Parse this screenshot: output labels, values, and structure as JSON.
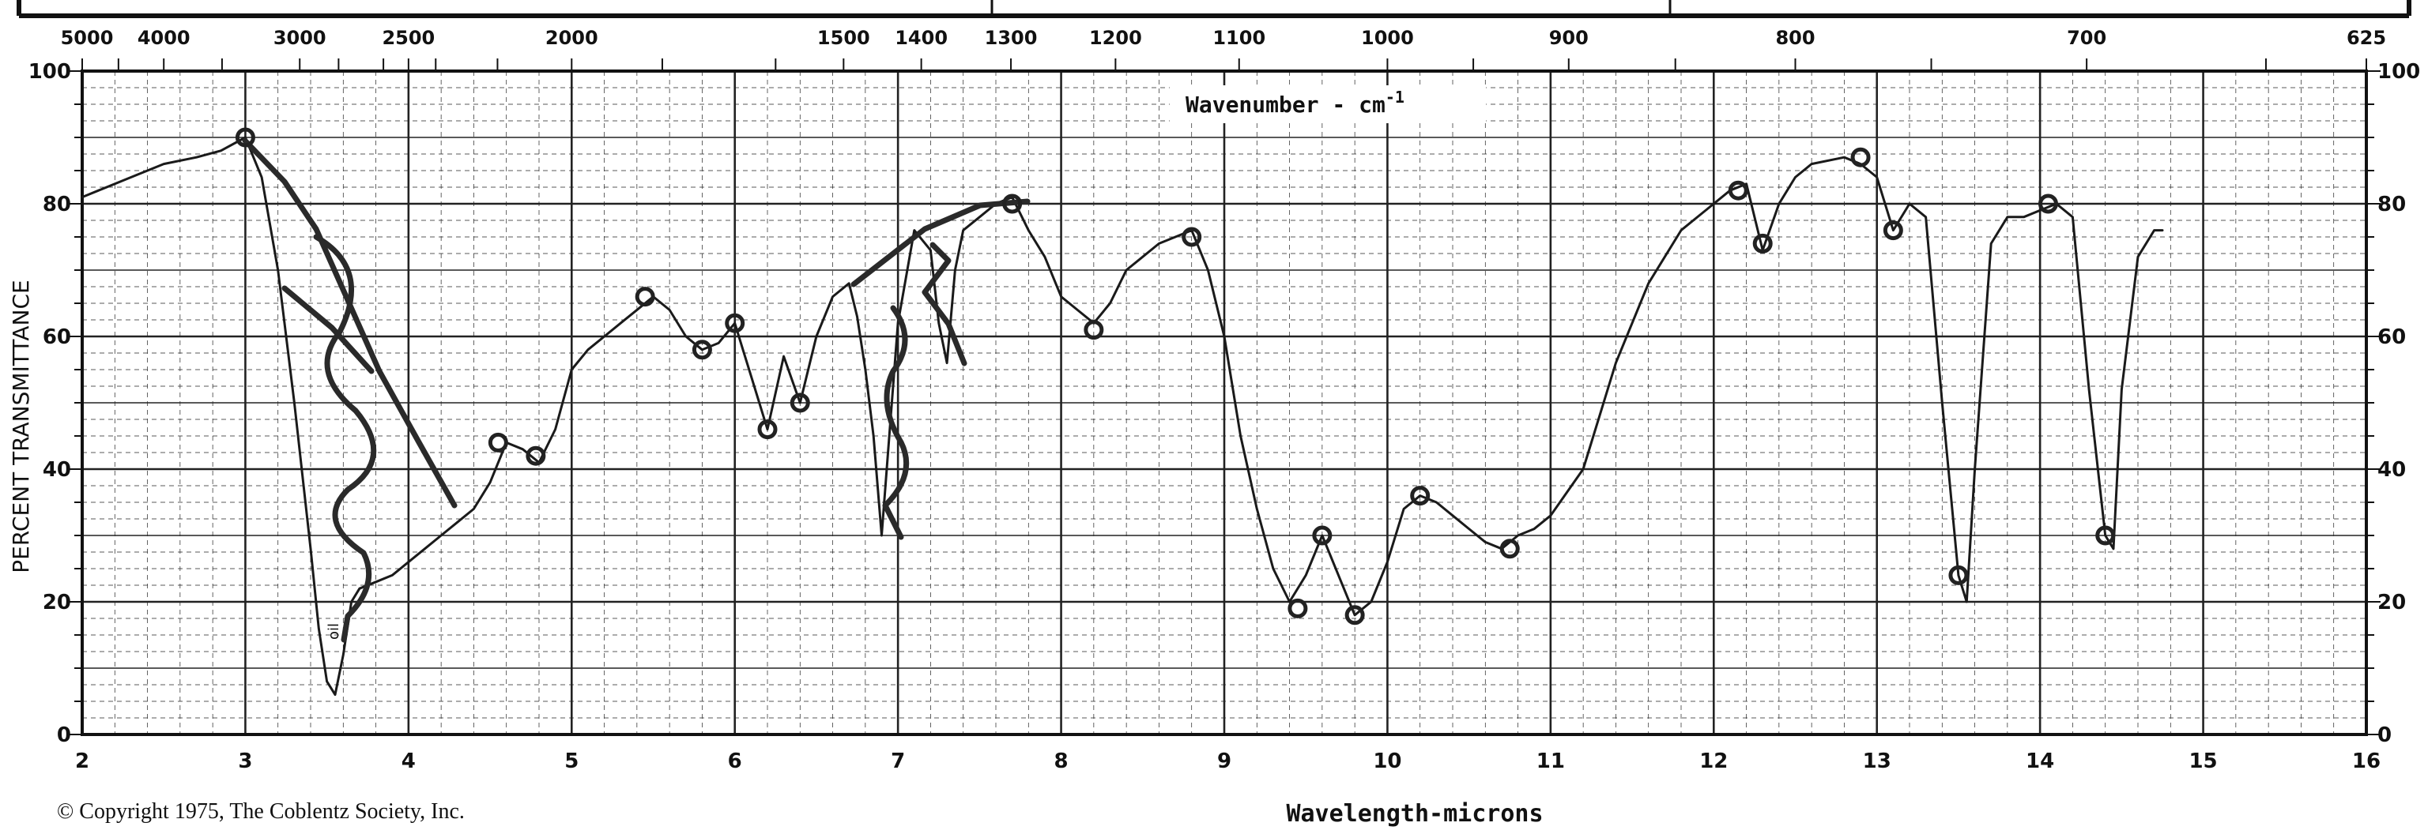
{
  "chart_data": {
    "type": "line",
    "top_axis_label": "Wavenumber - cm",
    "top_axis_label_sup": "-1",
    "xlabel": "Wavelength-microns",
    "ylabel": "PERCENT TRANSMITTANCE",
    "copyright": "© Copyright 1975, The Coblentz Society, Inc.",
    "xlim": [
      2,
      16
    ],
    "ylim": [
      0,
      100
    ],
    "x_ticks": [
      "2",
      "3",
      "4",
      "5",
      "6",
      "7",
      "8",
      "9",
      "10",
      "11",
      "12",
      "13",
      "14",
      "15",
      "16"
    ],
    "y_ticks": [
      "0",
      "20",
      "40",
      "60",
      "80",
      "100"
    ],
    "top_ticks": [
      "5000",
      "4000",
      "3000",
      "2500",
      "2000",
      "1500",
      "1400",
      "1300",
      "1200",
      "1100",
      "1000",
      "900",
      "800",
      "700",
      "625"
    ],
    "grid": true,
    "series": [
      {
        "color": "#1a1a1a",
        "x": [
          2.0,
          2.1,
          2.3,
          2.5,
          2.7,
          2.85,
          3.0,
          3.1,
          3.2,
          3.3,
          3.4,
          3.45,
          3.5,
          3.55,
          3.6,
          3.65,
          3.7,
          3.8,
          3.9,
          4.0,
          4.1,
          4.2,
          4.3,
          4.4,
          4.5,
          4.6,
          4.7,
          4.8,
          4.9,
          5.0,
          5.1,
          5.2,
          5.3,
          5.4,
          5.5,
          5.6,
          5.7,
          5.8,
          5.9,
          6.0,
          6.05,
          6.1,
          6.2,
          6.3,
          6.4,
          6.5,
          6.6,
          6.7,
          6.75,
          6.8,
          6.85,
          6.9,
          7.0,
          7.1,
          7.2,
          7.25,
          7.3,
          7.35,
          7.4,
          7.5,
          7.6,
          7.7,
          7.8,
          7.9,
          8.0,
          8.1,
          8.2,
          8.3,
          8.4,
          8.5,
          8.6,
          8.7,
          8.8,
          8.9,
          9.0,
          9.1,
          9.2,
          9.3,
          9.4,
          9.5,
          9.6,
          9.7,
          9.8,
          9.9,
          10.0,
          10.1,
          10.2,
          10.3,
          10.4,
          10.5,
          10.6,
          10.7,
          10.8,
          10.9,
          11.0,
          11.2,
          11.4,
          11.6,
          11.8,
          12.0,
          12.1,
          12.2,
          12.3,
          12.4,
          12.5,
          12.6,
          12.8,
          12.9,
          13.0,
          13.1,
          13.2,
          13.3,
          13.4,
          13.5,
          13.55,
          13.6,
          13.7,
          13.8,
          13.9,
          14.0,
          14.1,
          14.2,
          14.3,
          14.4,
          14.45,
          14.5,
          14.6,
          14.7,
          14.75
        ],
        "y": [
          81,
          82,
          84,
          86,
          87,
          88,
          90,
          84,
          70,
          50,
          28,
          16,
          8,
          6,
          12,
          20,
          22,
          23,
          24,
          26,
          28,
          30,
          32,
          34,
          38,
          44,
          43,
          41,
          46,
          55,
          58,
          60,
          62,
          64,
          66,
          64,
          60,
          58,
          59,
          62,
          58,
          54,
          46,
          57,
          50,
          60,
          66,
          68,
          63,
          55,
          45,
          30,
          62,
          76,
          73,
          62,
          56,
          70,
          76,
          78,
          80,
          81,
          76,
          72,
          66,
          64,
          62,
          65,
          70,
          72,
          74,
          75,
          76,
          70,
          60,
          45,
          34,
          25,
          20,
          24,
          30,
          24,
          18,
          20,
          26,
          34,
          36,
          35,
          33,
          31,
          29,
          28,
          30,
          31,
          33,
          40,
          56,
          68,
          76,
          80,
          82,
          83,
          73,
          80,
          84,
          86,
          87,
          86,
          84,
          76,
          80,
          78,
          50,
          24,
          20,
          40,
          74,
          78,
          78,
          79,
          80,
          78,
          52,
          30,
          28,
          52,
          72,
          76,
          76
        ]
      }
    ],
    "annotations": [
      "oil"
    ]
  }
}
